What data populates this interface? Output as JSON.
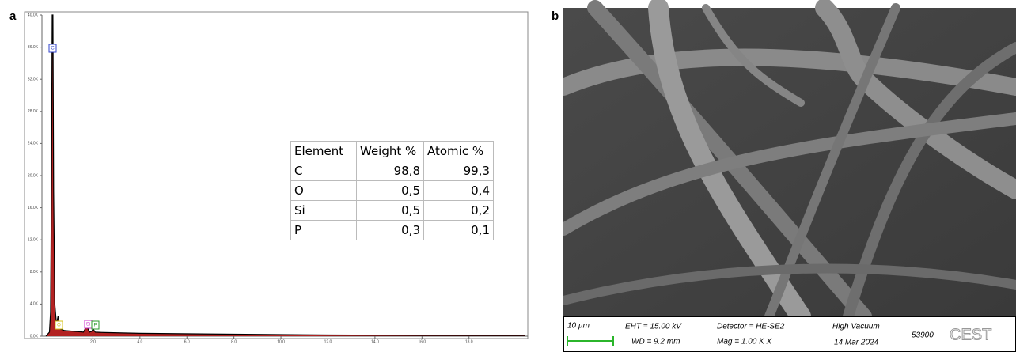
{
  "panel_labels": [
    "a",
    "b"
  ],
  "chart_data": {
    "type": "line",
    "x": [
      0.0,
      0.15,
      0.2,
      0.24,
      0.27,
      0.3,
      0.33,
      0.38,
      0.45,
      0.52,
      0.6,
      0.8,
      1.2,
      1.6,
      1.74,
      1.85,
      1.95,
      2.01,
      2.1,
      2.5,
      4,
      8,
      12,
      16,
      20.4
    ],
    "values": [
      0,
      500,
      3000,
      20000,
      40000,
      40000,
      18000,
      4000,
      1500,
      2500,
      900,
      700,
      600,
      500,
      1300,
      500,
      600,
      900,
      500,
      450,
      350,
      250,
      150,
      100,
      80
    ],
    "color": "#000000",
    "fill_color": "#b22222",
    "xlim": [
      0,
      20.5
    ],
    "xticks": [
      {
        "value": 2,
        "label": "2.0"
      },
      {
        "value": 4,
        "label": "4.0"
      },
      {
        "value": 6,
        "label": "6.0"
      },
      {
        "value": 8,
        "label": "8.0"
      },
      {
        "value": 10,
        "label": "10.0"
      },
      {
        "value": 12,
        "label": "12.0"
      },
      {
        "value": 14,
        "label": "14.0"
      },
      {
        "value": 16,
        "label": "16.0"
      },
      {
        "value": 18,
        "label": "18.0"
      }
    ],
    "ylim": [
      0,
      40000
    ],
    "yticks": [
      {
        "value": 0,
        "label": "0.0K"
      },
      {
        "value": 4000,
        "label": "4.0K"
      },
      {
        "value": 8000,
        "label": "8.0K"
      },
      {
        "value": 12000,
        "label": "12.0K"
      },
      {
        "value": 16000,
        "label": "16.0K"
      },
      {
        "value": 20000,
        "label": "20.0K"
      },
      {
        "value": 24000,
        "label": "24.0K"
      },
      {
        "value": 28000,
        "label": "28.0K"
      },
      {
        "value": 32000,
        "label": "32.0K"
      },
      {
        "value": 36000,
        "label": "36.0K"
      },
      {
        "value": 40000,
        "label": "40.0K"
      }
    ],
    "annotations": [
      "C",
      "O",
      "Si",
      "P"
    ]
  },
  "table": {
    "header": [
      "Element",
      "Weight %",
      "Atomic %"
    ],
    "rows": [
      [
        "C",
        "98,8",
        "99,3"
      ],
      [
        "O",
        "0,5",
        "0,4"
      ],
      [
        "Si",
        "0,5",
        "0,2"
      ],
      [
        "P",
        "0,3",
        "0,1"
      ]
    ]
  },
  "sem_info": {
    "scale_bar": "10 µm",
    "eht": "EHT = 15.00 kV",
    "wd": "WD =  9.2 mm",
    "detector": "Detector = HE-SE2",
    "mag": "Mag =   1.00 K X",
    "vacuum": "High Vacuum",
    "date": "14 Mar 2024",
    "id": "53900",
    "logo": "CEST"
  }
}
